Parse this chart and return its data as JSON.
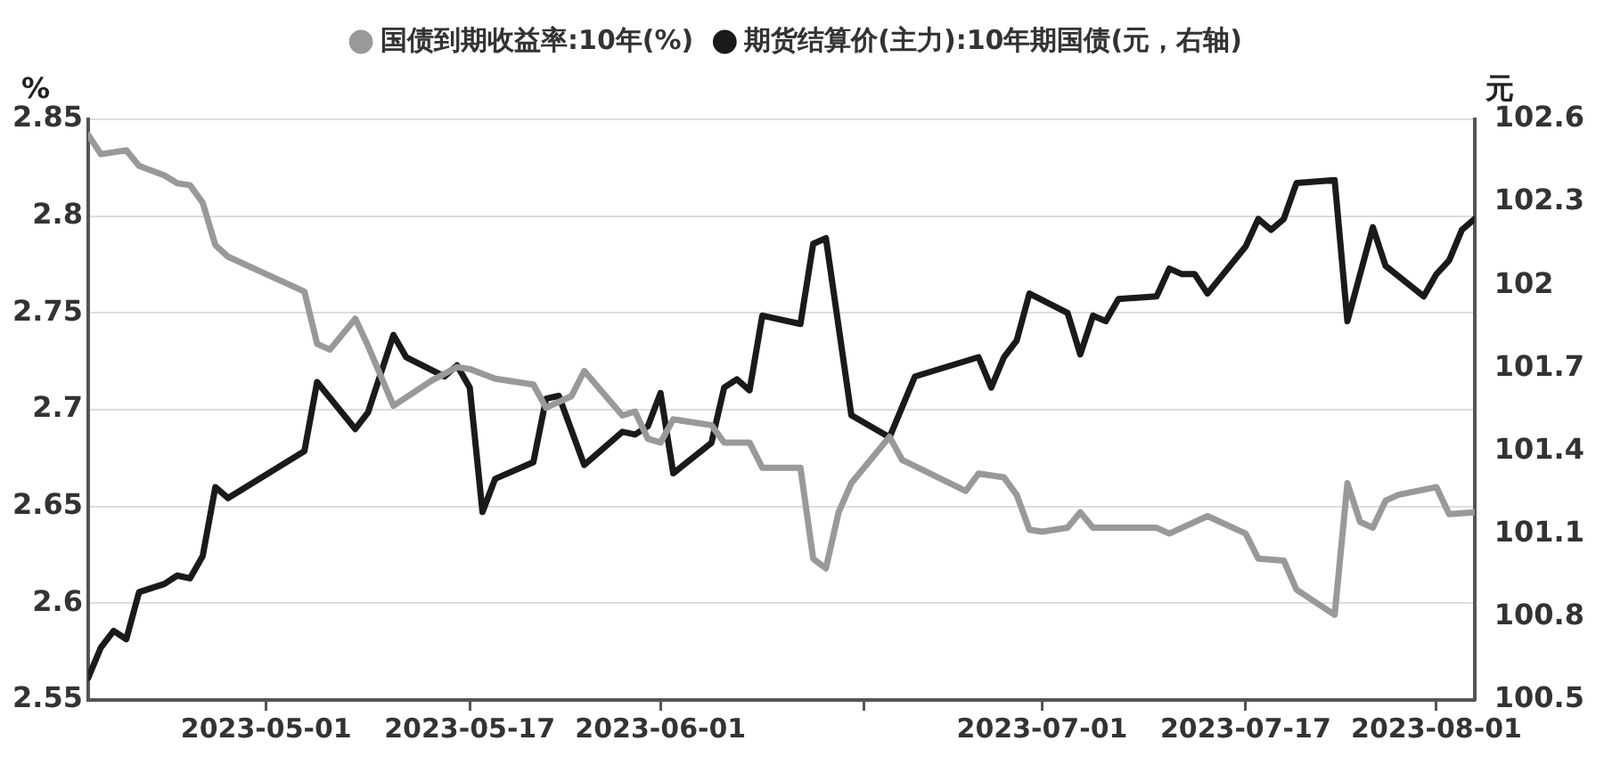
{
  "chart_data": {
    "type": "line",
    "ylabel": "%",
    "y2label": "元",
    "legend": "top",
    "grid": "y",
    "xlim": [
      "2023-04-17",
      "2023-08-04"
    ],
    "xticks": [
      "2023-05-01",
      "2023-05-17",
      "2023-06-01",
      {
        "value": "2023-06-17",
        "label": null
      },
      "2023-07-01",
      "2023-07-17",
      "2023-08-01"
    ],
    "ylim": [
      2.55,
      2.85
    ],
    "yticks": [
      2.55,
      2.6,
      2.65,
      2.7,
      2.75,
      2.8,
      2.85
    ],
    "y2lim": [
      100.5,
      102.6
    ],
    "y2ticks": [
      100.5,
      100.8,
      101.1,
      101.4,
      101.7,
      102,
      102.3,
      102.6
    ],
    "series": [
      {
        "name": "国债到期收益率:10年(%)",
        "color": "#999999",
        "x": [
          "2023-04-17",
          "2023-04-18",
          "2023-04-20",
          "2023-04-21",
          "2023-04-23",
          "2023-04-24",
          "2023-04-25",
          "2023-04-26",
          "2023-04-27",
          "2023-04-28",
          "2023-05-04",
          "2023-05-05",
          "2023-05-06",
          "2023-05-08",
          "2023-05-09",
          "2023-05-11",
          "2023-05-14",
          "2023-05-16",
          "2023-05-17",
          "2023-05-19",
          "2023-05-22",
          "2023-05-23",
          "2023-05-25",
          "2023-05-26",
          "2023-05-29",
          "2023-05-30",
          "2023-05-31",
          "2023-06-01",
          "2023-06-02",
          "2023-06-05",
          "2023-06-06",
          "2023-06-08",
          "2023-06-09",
          "2023-06-12",
          "2023-06-13",
          "2023-06-14",
          "2023-06-15",
          "2023-06-16",
          "2023-06-19",
          "2023-06-20",
          "2023-06-25",
          "2023-06-26",
          "2023-06-28",
          "2023-06-29",
          "2023-06-30",
          "2023-07-01",
          "2023-07-03",
          "2023-07-04",
          "2023-07-05",
          "2023-07-10",
          "2023-07-11",
          "2023-07-14",
          "2023-07-17",
          "2023-07-18",
          "2023-07-20",
          "2023-07-21",
          "2023-07-24",
          "2023-07-25",
          "2023-07-26",
          "2023-07-27",
          "2023-07-28",
          "2023-07-29",
          "2023-08-01",
          "2023-08-02",
          "2023-08-04"
        ],
        "values": [
          2.842,
          2.832,
          2.834,
          2.826,
          2.821,
          2.817,
          2.816,
          2.807,
          2.785,
          2.779,
          2.761,
          2.734,
          2.731,
          2.747,
          2.733,
          2.702,
          2.715,
          2.722,
          2.721,
          2.716,
          2.713,
          2.701,
          2.707,
          2.72,
          2.697,
          2.699,
          2.685,
          2.683,
          2.695,
          2.692,
          2.683,
          2.683,
          2.67,
          2.67,
          2.623,
          2.618,
          2.647,
          2.662,
          2.686,
          2.674,
          2.658,
          2.667,
          2.665,
          2.656,
          2.638,
          2.637,
          2.639,
          2.647,
          2.639,
          2.639,
          2.636,
          2.645,
          2.636,
          2.623,
          2.622,
          2.607,
          2.594,
          2.662,
          2.642,
          2.639,
          2.653,
          2.656,
          2.66,
          2.646,
          2.647
        ]
      },
      {
        "name": "期货结算价(主力):10年期国债(元，右轴)",
        "color": "#1a1a1a",
        "axis": "y2",
        "x": [
          "2023-04-17",
          "2023-04-18",
          "2023-04-19",
          "2023-04-20",
          "2023-04-21",
          "2023-04-23",
          "2023-04-24",
          "2023-04-25",
          "2023-04-26",
          "2023-04-27",
          "2023-04-28",
          "2023-05-04",
          "2023-05-05",
          "2023-05-08",
          "2023-05-09",
          "2023-05-11",
          "2023-05-12",
          "2023-05-15",
          "2023-05-16",
          "2023-05-17",
          "2023-05-18",
          "2023-05-19",
          "2023-05-22",
          "2023-05-23",
          "2023-05-24",
          "2023-05-26",
          "2023-05-29",
          "2023-05-30",
          "2023-05-31",
          "2023-06-01",
          "2023-06-02",
          "2023-06-05",
          "2023-06-06",
          "2023-06-07",
          "2023-06-08",
          "2023-06-09",
          "2023-06-12",
          "2023-06-13",
          "2023-06-14",
          "2023-06-16",
          "2023-06-19",
          "2023-06-21",
          "2023-06-26",
          "2023-06-27",
          "2023-06-28",
          "2023-06-29",
          "2023-06-30",
          "2023-07-03",
          "2023-07-04",
          "2023-07-05",
          "2023-07-06",
          "2023-07-07",
          "2023-07-10",
          "2023-07-11",
          "2023-07-12",
          "2023-07-13",
          "2023-07-14",
          "2023-07-17",
          "2023-07-18",
          "2023-07-19",
          "2023-07-20",
          "2023-07-21",
          "2023-07-24",
          "2023-07-25",
          "2023-07-27",
          "2023-07-28",
          "2023-07-31",
          "2023-08-01",
          "2023-08-02",
          "2023-08-03",
          "2023-08-04"
        ],
        "values": [
          100.58,
          100.69,
          100.75,
          100.72,
          100.89,
          100.92,
          100.95,
          100.94,
          101.02,
          101.27,
          101.23,
          101.4,
          101.65,
          101.48,
          101.54,
          101.82,
          101.74,
          101.67,
          101.71,
          101.63,
          101.18,
          101.3,
          101.36,
          101.59,
          101.6,
          101.35,
          101.47,
          101.46,
          101.49,
          101.61,
          101.32,
          101.43,
          101.63,
          101.66,
          101.62,
          101.89,
          101.86,
          102.15,
          102.17,
          101.53,
          101.45,
          101.67,
          101.74,
          101.63,
          101.74,
          101.8,
          101.97,
          101.9,
          101.75,
          101.89,
          101.87,
          101.95,
          101.96,
          102.06,
          102.04,
          102.04,
          101.97,
          102.14,
          102.24,
          102.2,
          102.24,
          102.37,
          102.38,
          101.87,
          102.21,
          102.07,
          101.96,
          102.04,
          102.09,
          102.2,
          102.24
        ]
      }
    ]
  }
}
